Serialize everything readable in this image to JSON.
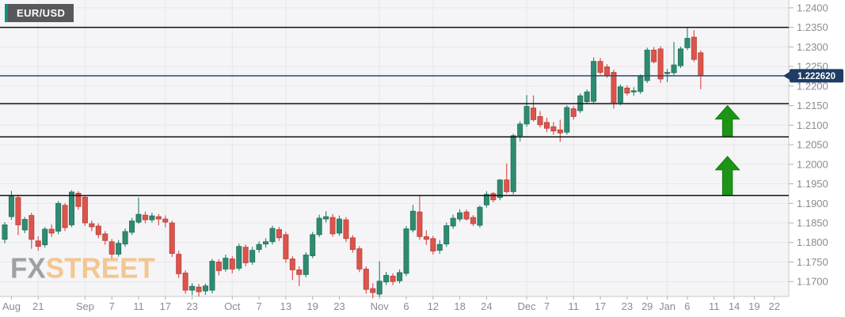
{
  "header": {
    "symbol": "EUR/USD"
  },
  "watermark": {
    "fx": "FX",
    "street": "STREET"
  },
  "price_axis": {
    "current_price_label": "1.222620",
    "tick_labels": [
      "1.2400",
      "1.2350",
      "1.2300",
      "1.2250",
      "1.2200",
      "1.2150",
      "1.2100",
      "1.2050",
      "1.2000",
      "1.1950",
      "1.1900",
      "1.1850",
      "1.1800",
      "1.1750",
      "1.1700"
    ]
  },
  "x_axis": {
    "ticks": [
      {
        "label": "Aug",
        "slot": 1
      },
      {
        "label": "21",
        "slot": 5
      },
      {
        "label": "Sep",
        "slot": 12
      },
      {
        "label": "7",
        "slot": 16
      },
      {
        "label": "11",
        "slot": 20
      },
      {
        "label": "17",
        "slot": 24
      },
      {
        "label": "23",
        "slot": 28
      },
      {
        "label": "Oct",
        "slot": 34
      },
      {
        "label": "7",
        "slot": 38
      },
      {
        "label": "13",
        "slot": 42
      },
      {
        "label": "19",
        "slot": 46
      },
      {
        "label": "23",
        "slot": 50
      },
      {
        "label": "Nov",
        "slot": 56
      },
      {
        "label": "6",
        "slot": 60
      },
      {
        "label": "12",
        "slot": 64
      },
      {
        "label": "18",
        "slot": 68
      },
      {
        "label": "24",
        "slot": 72
      },
      {
        "label": "Dec",
        "slot": 78
      },
      {
        "label": "7",
        "slot": 81
      },
      {
        "label": "11",
        "slot": 85
      },
      {
        "label": "17",
        "slot": 89
      },
      {
        "label": "23",
        "slot": 93
      },
      {
        "label": "29",
        "slot": 96
      },
      {
        "label": "Jan",
        "slot": 99
      },
      {
        "label": "6",
        "slot": 102
      },
      {
        "label": "11",
        "slot": 106
      },
      {
        "label": "14",
        "slot": 109
      },
      {
        "label": "19",
        "slot": 112
      },
      {
        "label": "22",
        "slot": 115
      }
    ],
    "grid_slots": [
      5,
      12,
      24,
      34,
      42,
      56,
      64,
      78,
      85,
      99,
      109
    ]
  },
  "chart_data": {
    "type": "candlestick",
    "symbol": "EUR/USD",
    "ylim": [
      1.1662,
      1.242
    ],
    "price_grid_step": 0.005,
    "current_price": 1.22262,
    "levels": [
      1.235,
      1.2155,
      1.207,
      1.192
    ],
    "annotations": [
      {
        "type": "up-arrow",
        "slot": 108,
        "from_price": 1.2072,
        "to_price": 1.215
      },
      {
        "type": "up-arrow",
        "slot": 108,
        "from_price": 1.1922,
        "to_price": 1.202
      }
    ],
    "candles": [
      [
        1.1808,
        1.1852,
        1.1798,
        1.1845
      ],
      [
        1.1866,
        1.1932,
        1.1858,
        1.192
      ],
      [
        1.1915,
        1.1922,
        1.1819,
        1.1845
      ],
      [
        1.1832,
        1.1865,
        1.1824,
        1.1859
      ],
      [
        1.1869,
        1.1876,
        1.1784,
        1.1808
      ],
      [
        1.1804,
        1.1816,
        1.1779,
        1.179
      ],
      [
        1.1794,
        1.184,
        1.1787,
        1.1834
      ],
      [
        1.1834,
        1.1846,
        1.1814,
        1.1824
      ],
      [
        1.1829,
        1.1906,
        1.1821,
        1.19
      ],
      [
        1.1895,
        1.1901,
        1.1829,
        1.1838
      ],
      [
        1.1845,
        1.1934,
        1.1839,
        1.1929
      ],
      [
        1.1926,
        1.1931,
        1.1884,
        1.1892
      ],
      [
        1.1916,
        1.1921,
        1.1842,
        1.185
      ],
      [
        1.1848,
        1.1856,
        1.1829,
        1.184
      ],
      [
        1.1842,
        1.1849,
        1.1811,
        1.182
      ],
      [
        1.1822,
        1.1829,
        1.1794,
        1.1805
      ],
      [
        1.1802,
        1.1809,
        1.1759,
        1.177
      ],
      [
        1.177,
        1.1806,
        1.1764,
        1.1798
      ],
      [
        1.1796,
        1.1836,
        1.1789,
        1.1828
      ],
      [
        1.1826,
        1.1863,
        1.1819,
        1.1855
      ],
      [
        1.1852,
        1.1915,
        1.1847,
        1.1872
      ],
      [
        1.187,
        1.1879,
        1.1849,
        1.1858
      ],
      [
        1.1858,
        1.1876,
        1.1851,
        1.1868
      ],
      [
        1.1866,
        1.1873,
        1.1844,
        1.186
      ],
      [
        1.186,
        1.1869,
        1.1839,
        1.1852
      ],
      [
        1.185,
        1.1856,
        1.1763,
        1.1772
      ],
      [
        1.177,
        1.1779,
        1.1709,
        1.172
      ],
      [
        1.1722,
        1.1729,
        1.1669,
        1.1678
      ],
      [
        1.1678,
        1.1696,
        1.1665,
        1.1688
      ],
      [
        1.1686,
        1.1694,
        1.1662,
        1.1674
      ],
      [
        1.1676,
        1.1695,
        1.1666,
        1.1689
      ],
      [
        1.1678,
        1.1758,
        1.167,
        1.1752
      ],
      [
        1.175,
        1.1757,
        1.1716,
        1.1728
      ],
      [
        1.1732,
        1.1769,
        1.1725,
        1.176
      ],
      [
        1.1758,
        1.1765,
        1.1721,
        1.1732
      ],
      [
        1.1734,
        1.1797,
        1.1728,
        1.179
      ],
      [
        1.1788,
        1.1795,
        1.1739,
        1.1748
      ],
      [
        1.175,
        1.1789,
        1.1743,
        1.178
      ],
      [
        1.1782,
        1.1803,
        1.1774,
        1.1795
      ],
      [
        1.1796,
        1.1811,
        1.1787,
        1.1802
      ],
      [
        1.1802,
        1.1843,
        1.1795,
        1.1836
      ],
      [
        1.1833,
        1.184,
        1.1804,
        1.1812
      ],
      [
        1.182,
        1.1827,
        1.1748,
        1.1758
      ],
      [
        1.1758,
        1.1765,
        1.1704,
        1.173
      ],
      [
        1.173,
        1.1739,
        1.1689,
        1.1718
      ],
      [
        1.1718,
        1.1775,
        1.1711,
        1.1768
      ],
      [
        1.1766,
        1.1827,
        1.176,
        1.182
      ],
      [
        1.182,
        1.1871,
        1.1814,
        1.1862
      ],
      [
        1.186,
        1.188,
        1.1851,
        1.1866
      ],
      [
        1.1864,
        1.1873,
        1.1815,
        1.1822
      ],
      [
        1.1824,
        1.1869,
        1.1817,
        1.186
      ],
      [
        1.1858,
        1.1865,
        1.1801,
        1.181
      ],
      [
        1.1812,
        1.1819,
        1.1774,
        1.1782
      ],
      [
        1.1784,
        1.1791,
        1.1724,
        1.1732
      ],
      [
        1.1732,
        1.1739,
        1.1669,
        1.168
      ],
      [
        1.1682,
        1.1696,
        1.1657,
        1.1672
      ],
      [
        1.1668,
        1.1752,
        1.166,
        1.1701
      ],
      [
        1.1699,
        1.1725,
        1.1691,
        1.1716
      ],
      [
        1.1714,
        1.1721,
        1.1691,
        1.17
      ],
      [
        1.1702,
        1.1731,
        1.1695,
        1.1723
      ],
      [
        1.1721,
        1.1842,
        1.1714,
        1.1835
      ],
      [
        1.1832,
        1.1896,
        1.1826,
        1.188
      ],
      [
        1.1878,
        1.192,
        1.1807,
        1.1815
      ],
      [
        1.1815,
        1.1831,
        1.1794,
        1.1808
      ],
      [
        1.181,
        1.1817,
        1.1769,
        1.1778
      ],
      [
        1.178,
        1.1806,
        1.1771,
        1.1795
      ],
      [
        1.1796,
        1.1851,
        1.1789,
        1.1843
      ],
      [
        1.1842,
        1.1871,
        1.1835,
        1.1862
      ],
      [
        1.186,
        1.1885,
        1.1853,
        1.1876
      ],
      [
        1.1878,
        1.1884,
        1.1856,
        1.186
      ],
      [
        1.1864,
        1.187,
        1.1842,
        1.1848
      ],
      [
        1.1844,
        1.1895,
        1.1838,
        1.189
      ],
      [
        1.1896,
        1.1931,
        1.1889,
        1.1923
      ],
      [
        1.1925,
        1.1929,
        1.1903,
        1.1909
      ],
      [
        1.1915,
        1.1962,
        1.1908,
        1.196
      ],
      [
        1.196,
        1.2002,
        1.1925,
        1.193
      ],
      [
        1.193,
        1.2078,
        1.1923,
        1.2073
      ],
      [
        1.2073,
        1.211,
        1.2058,
        1.2103
      ],
      [
        1.2103,
        1.2177,
        1.2096,
        1.2148
      ],
      [
        1.2144,
        1.2176,
        1.2109,
        1.2114
      ],
      [
        1.2122,
        1.2136,
        1.2094,
        1.2101
      ],
      [
        1.2107,
        1.2119,
        1.2082,
        1.2092
      ],
      [
        1.2096,
        1.2108,
        1.2075,
        1.2085
      ],
      [
        1.2088,
        1.2114,
        1.2057,
        1.208
      ],
      [
        1.2082,
        1.2151,
        1.2076,
        1.2145
      ],
      [
        1.2142,
        1.2149,
        1.2114,
        1.2122
      ],
      [
        1.2137,
        1.2181,
        1.2131,
        1.2175
      ],
      [
        1.216,
        1.2191,
        1.2154,
        1.2185
      ],
      [
        1.2161,
        1.2273,
        1.2155,
        1.2263
      ],
      [
        1.2263,
        1.2272,
        1.2229,
        1.2235
      ],
      [
        1.2249,
        1.2256,
        1.2221,
        1.2228
      ],
      [
        1.2235,
        1.2242,
        1.2142,
        1.2158
      ],
      [
        1.2158,
        1.2204,
        1.2151,
        1.2198
      ],
      [
        1.2195,
        1.2202,
        1.2176,
        1.2182
      ],
      [
        1.2185,
        1.2197,
        1.2175,
        1.2188
      ],
      [
        1.2186,
        1.223,
        1.218,
        1.2224
      ],
      [
        1.2214,
        1.2298,
        1.2208,
        1.2292
      ],
      [
        1.2292,
        1.23,
        1.2258,
        1.2262
      ],
      [
        1.2295,
        1.2302,
        1.2208,
        1.2218
      ],
      [
        1.2232,
        1.2244,
        1.221,
        1.2235
      ],
      [
        1.2234,
        1.2313,
        1.2228,
        1.2254
      ],
      [
        1.2252,
        1.2301,
        1.2246,
        1.2295
      ],
      [
        1.2298,
        1.235,
        1.2292,
        1.2322
      ],
      [
        1.2325,
        1.2343,
        1.2262,
        1.2268
      ],
      [
        1.2285,
        1.2291,
        1.2192,
        1.22262
      ]
    ]
  },
  "colors": {
    "plot_bg": "#f5f5f7",
    "grid": "#e7e7ea",
    "axis_line": "#c9c9cd",
    "axis_text": "#8c8c90",
    "candle_up": "#2e8b72",
    "candle_up_border": "#23705b",
    "candle_down": "#dc544c",
    "candle_down_border": "#b5433d",
    "level_line": "#111111",
    "current_price_line": "#2a4a7b",
    "price_badge_bg": "#1e3c64",
    "price_badge_text": "#ffffff",
    "arrow_green": "#1e9417",
    "arrow_green_border": "#0e7a0e",
    "symbol_badge_bg": "#57585a",
    "symbol_badge_accent": "#0f9080",
    "watermark_fx": "#969aa0",
    "watermark_street": "#f3c488"
  }
}
